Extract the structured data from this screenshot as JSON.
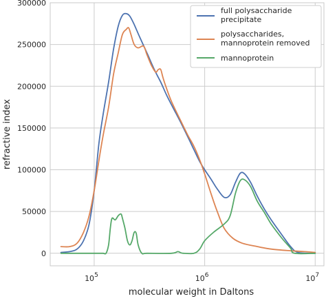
{
  "chart_data": {
    "type": "line",
    "title": "",
    "xlabel": "molecular weight in Daltons",
    "ylabel": "refractive index",
    "xscale": "log",
    "xlim": [
      40000,
      12000000
    ],
    "ylim": [
      -15000,
      300000
    ],
    "grid": true,
    "legend_position": "top-right",
    "x_ticks": [
      {
        "base": "10",
        "exp": "5",
        "value": 100000
      },
      {
        "base": "10",
        "exp": "6",
        "value": 1000000
      },
      {
        "base": "10",
        "exp": "7",
        "value": 10000000
      }
    ],
    "y_ticks": [
      "0",
      "50000",
      "100000",
      "150000",
      "200000",
      "250000",
      "300000"
    ],
    "y_tick_values": [
      0,
      50000,
      100000,
      150000,
      200000,
      250000,
      300000
    ],
    "series": [
      {
        "name": "full polysaccharide precipitate",
        "color": "#4c72b0",
        "x": [
          50000,
          60000,
          70000,
          80000,
          90000,
          100000,
          110000,
          120000,
          135000,
          150000,
          165000,
          180000,
          195000,
          210000,
          230000,
          260000,
          300000,
          350000,
          400000,
          450000,
          500000,
          600000,
          700000,
          800000,
          900000,
          1000000,
          1150000,
          1300000,
          1500000,
          1700000,
          1900000,
          2100000,
          2300000,
          2600000,
          3000000,
          3500000,
          4000000,
          5000000,
          6000000,
          7000000,
          10000000
        ],
        "y": [
          1000,
          2000,
          5000,
          15000,
          35000,
          75000,
          130000,
          165000,
          205000,
          245000,
          272000,
          285000,
          287000,
          284000,
          274000,
          258000,
          240000,
          220000,
          205000,
          190000,
          178000,
          158000,
          140000,
          124000,
          110000,
          100000,
          88000,
          77000,
          67000,
          70000,
          85000,
          96000,
          95000,
          85000,
          68000,
          52000,
          40000,
          22000,
          8000,
          1000,
          0
        ]
      },
      {
        "name": "polysaccharides, mannoprotein removed",
        "color": "#dd8452",
        "x": [
          50000,
          60000,
          70000,
          80000,
          90000,
          100000,
          110000,
          120000,
          135000,
          150000,
          165000,
          180000,
          195000,
          205000,
          215000,
          230000,
          250000,
          280000,
          300000,
          330000,
          360000,
          380000,
          400000,
          420000,
          450000,
          500000,
          600000,
          700000,
          800000,
          900000,
          1000000,
          1150000,
          1300000,
          1500000,
          1800000,
          2200000,
          3000000,
          4000000,
          6000000,
          8000000,
          10000000
        ],
        "y": [
          8000,
          8000,
          12000,
          25000,
          45000,
          75000,
          110000,
          140000,
          175000,
          215000,
          240000,
          262000,
          268000,
          270000,
          262000,
          250000,
          246000,
          248000,
          238000,
          225000,
          217000,
          220000,
          220000,
          210000,
          198000,
          182000,
          160000,
          142000,
          128000,
          112000,
          95000,
          70000,
          50000,
          30000,
          18000,
          12000,
          8000,
          5000,
          3000,
          2000,
          1000
        ]
      },
      {
        "name": "mannoprotein",
        "color": "#55a868",
        "x": [
          50000,
          100000,
          120000,
          128000,
          135000,
          140000,
          145000,
          155000,
          165000,
          175000,
          180000,
          190000,
          200000,
          210000,
          220000,
          230000,
          240000,
          250000,
          270000,
          300000,
          500000,
          570000,
          600000,
          640000,
          800000,
          900000,
          1000000,
          1200000,
          1500000,
          1700000,
          1900000,
          2100000,
          2300000,
          2600000,
          3000000,
          3500000,
          4000000,
          5000000,
          6000000,
          6500000,
          10000000
        ],
        "y": [
          0,
          0,
          0,
          0,
          10000,
          30000,
          42000,
          40000,
          45000,
          47000,
          42000,
          30000,
          15000,
          10000,
          15000,
          25000,
          24000,
          10000,
          0,
          0,
          0,
          2000,
          1000,
          0,
          0,
          5000,
          15000,
          25000,
          35000,
          45000,
          72000,
          87000,
          88000,
          80000,
          62000,
          48000,
          35000,
          18000,
          6000,
          0,
          0
        ]
      }
    ]
  }
}
